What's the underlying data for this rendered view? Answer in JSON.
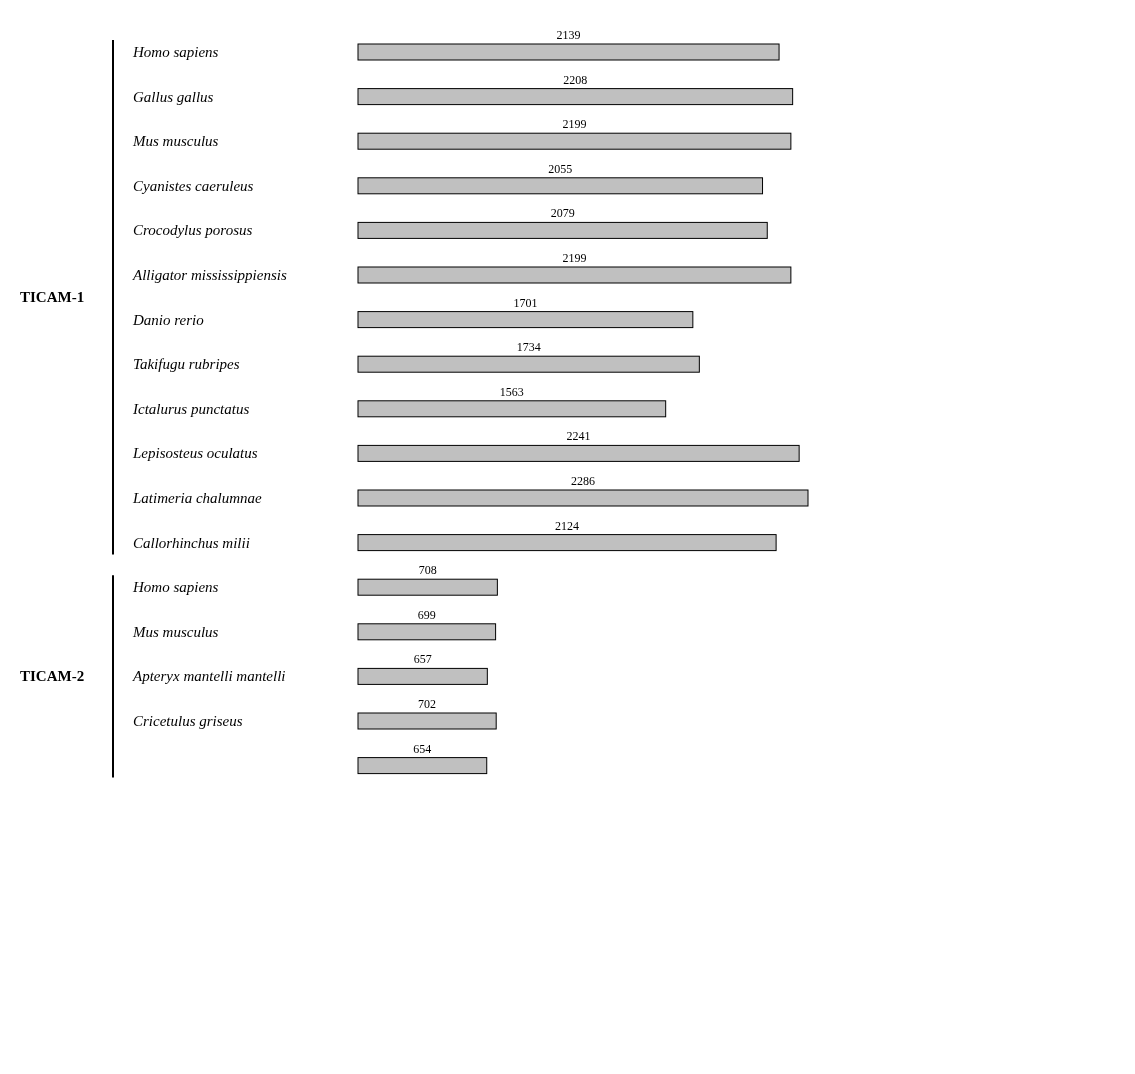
{
  "chart_data": {
    "type": "bar",
    "orientation": "horizontal",
    "data_labels": true,
    "color": "#c0c0c0",
    "categories": [
      "Homo sapiens",
      "Gallus gallus",
      "Mus musculus",
      "Cyanistes caeruleus",
      "Crocodylus porosus",
      "Alligator mississippiensis",
      "Danio rerio",
      "Takifugu rubripes",
      "Ictalurus punctatus",
      "Lepisosteus oculatus",
      "Latimeria chalumnae",
      "Callorhinchus milii",
      "Homo sapiens",
      "Mus musculus",
      "Apteryx mantelli mantelli",
      "Cricetulus griseus",
      null
    ],
    "values": [
      2139,
      2208,
      2199,
      2055,
      2079,
      2199,
      1701,
      1734,
      1563,
      2241,
      2286,
      2124,
      708,
      699,
      657,
      702,
      654
    ],
    "annotations": [
      "TICAM-1",
      "TICAM-2"
    ]
  }
}
